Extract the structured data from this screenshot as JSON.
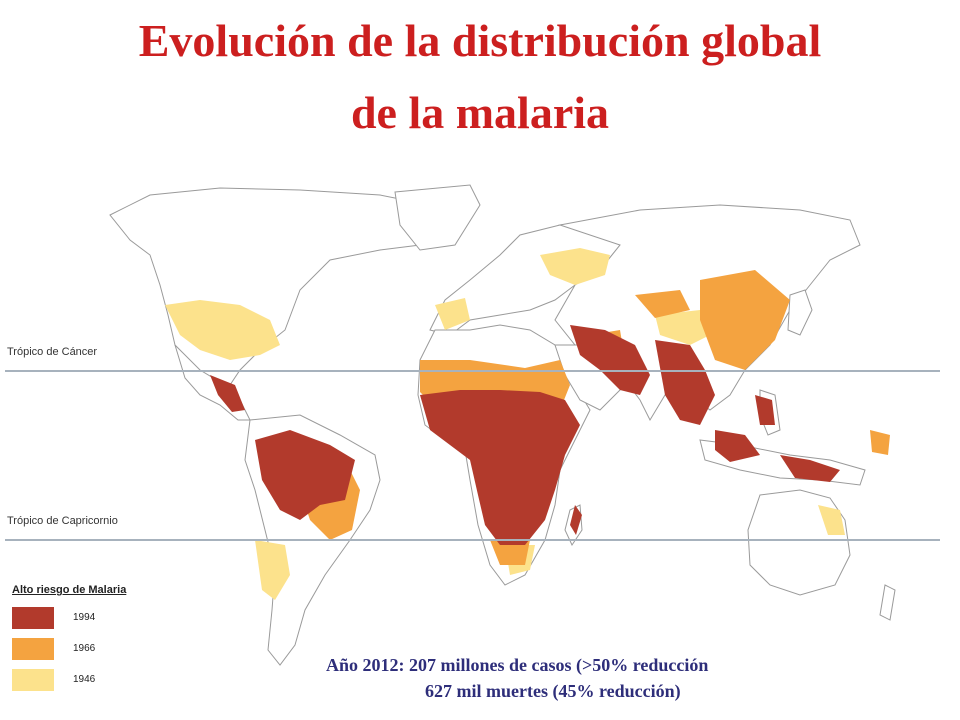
{
  "title": {
    "line1": "Evolución de la distribución global",
    "line2": "de la malaria"
  },
  "tropics": {
    "cancer": "Trópico de Cáncer",
    "capricorn": "Trópico de Capricornio"
  },
  "legend": {
    "title": "Alto riesgo de Malaria",
    "items": [
      {
        "year": "1994",
        "color": "#b23a2c"
      },
      {
        "year": "1966",
        "color": "#f4a340"
      },
      {
        "year": "1946",
        "color": "#fce28c"
      }
    ]
  },
  "stats": {
    "line1": "Año 2012: 207 millones de casos (>50% reducción",
    "line2": "627 mil muertes (45% reducción)"
  },
  "colors": {
    "land": "#ffffff",
    "border": "#9a9a9a",
    "tropic_line": "#a7b2bd",
    "title": "#cc1f1f",
    "stats": "#2e2e7a"
  }
}
